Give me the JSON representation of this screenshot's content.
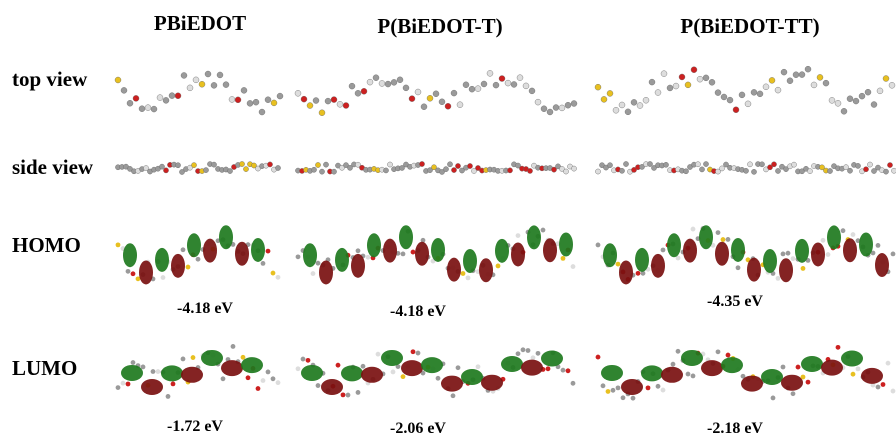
{
  "columns": [
    {
      "title": "PBiEDOT",
      "homo": "-4.18 eV",
      "lumo": "-1.72 eV"
    },
    {
      "title": "P(BiEDOT-T)",
      "homo": "-4.18 eV",
      "lumo": "-2.06 eV"
    },
    {
      "title": "P(BiEDOT-TT)",
      "homo": "-4.35 eV",
      "lumo": "-2.18 eV"
    }
  ],
  "rows": {
    "top_view": "top view",
    "side_view": "side view",
    "homo": "HOMO",
    "lumo": "LUMO"
  }
}
